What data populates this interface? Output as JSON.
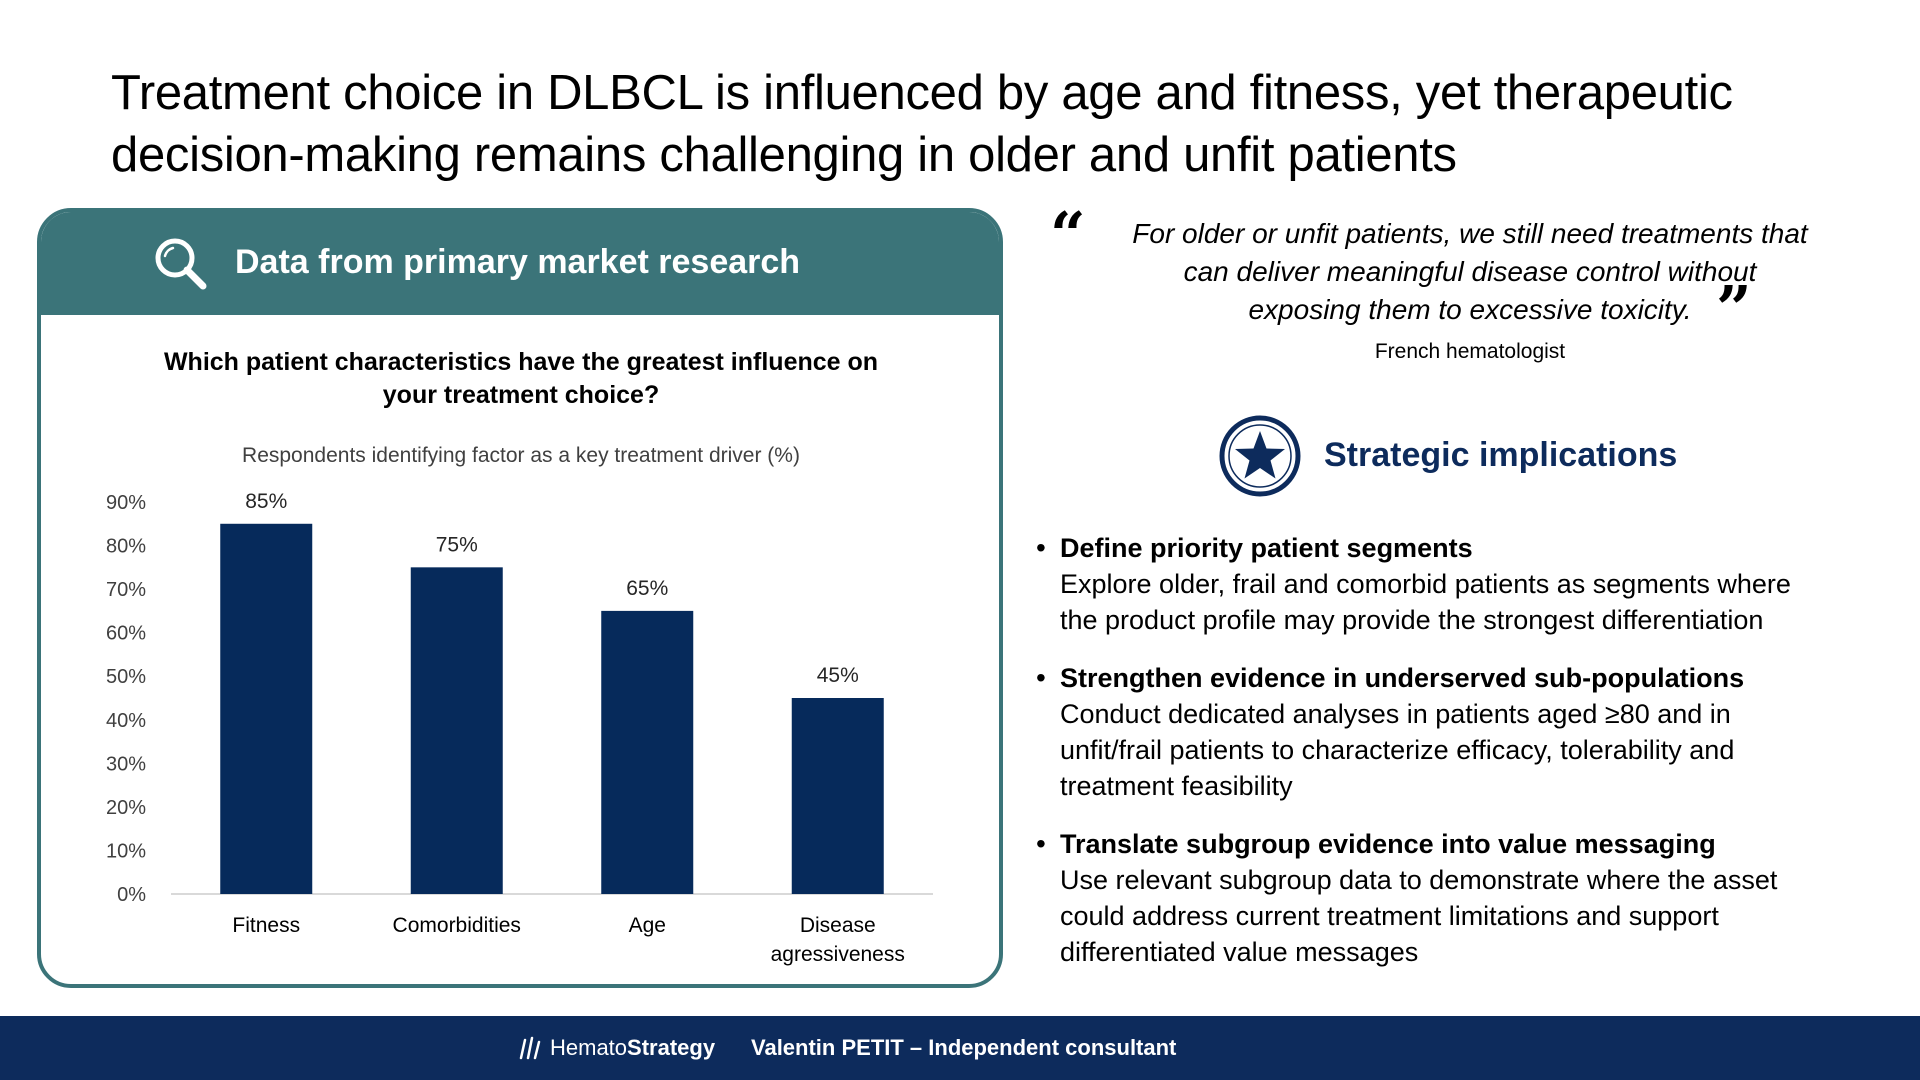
{
  "slide": {
    "title_line1": "Treatment choice in DLBCL is influenced by age and fitness, yet therapeutic",
    "title_line2": "decision-making remains challenging in older and unfit patients"
  },
  "card": {
    "header": "Data from primary market research",
    "question_line1": "Which patient characteristics have the greatest influence on",
    "question_line2": "your treatment choice?"
  },
  "chart_data": {
    "type": "bar",
    "subtitle": "Respondents identifying factor as a key treatment driver (%)",
    "categories": [
      [
        "Fitness"
      ],
      [
        "Comorbidities"
      ],
      [
        "Age"
      ],
      [
        "Disease",
        "agressiveness"
      ]
    ],
    "values": [
      85,
      75,
      65,
      45
    ],
    "data_labels": [
      "85%",
      "75%",
      "65%",
      "45%"
    ],
    "ylim": [
      0,
      90
    ],
    "yticks": [
      0,
      10,
      20,
      30,
      40,
      50,
      60,
      70,
      80,
      90
    ],
    "ytick_labels": [
      "0%",
      "10%",
      "20%",
      "30%",
      "40%",
      "50%",
      "60%",
      "70%",
      "80%",
      "90%"
    ],
    "grid": false,
    "bar_color": "#062a5b"
  },
  "quote": {
    "open_mark": "“",
    "close_mark": "”",
    "line1": "For older or unfit patients, we still need treatments that",
    "line2": "can deliver meaningful disease control without",
    "line3": "exposing them to excessive toxicity.",
    "author": "French hematologist"
  },
  "implications": {
    "title": "Strategic implications",
    "icon": "star-icon",
    "items": [
      {
        "head": "Define priority patient segments",
        "body": [
          "Explore older, frail and comorbid patients as segments where",
          "the product profile may provide the strongest differentiation"
        ]
      },
      {
        "head": "Strengthen evidence in underserved sub-populations",
        "body": [
          "Conduct dedicated analyses in patients aged ≥80 and in",
          "unfit/frail patients to characterize efficacy, tolerability and",
          "treatment feasibility"
        ]
      },
      {
        "head": "Translate subgroup evidence into value messaging",
        "body": [
          "Use relevant subgroup data to demonstrate where the asset",
          "could address current treatment limitations and support",
          "differentiated value messages"
        ]
      }
    ]
  },
  "footer": {
    "brand_light": "Hemato",
    "brand_bold": "Strategy",
    "author": "Valentin PETIT – Independent consultant"
  },
  "colors": {
    "teal": "#3b7479",
    "navy": "#0d2b5c",
    "bar": "#062a5b"
  }
}
